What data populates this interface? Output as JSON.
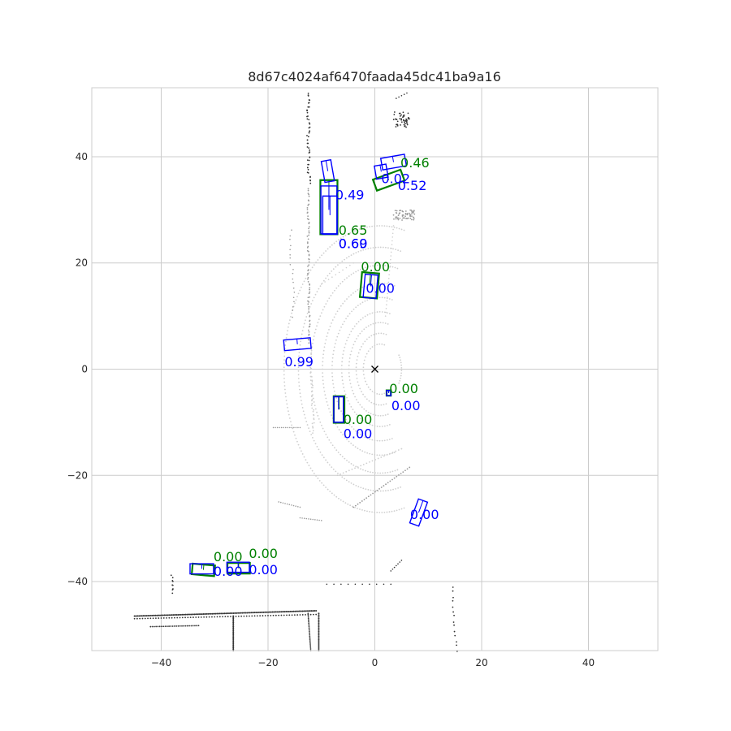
{
  "chart_data": {
    "type": "scatter",
    "title": "8d67c4024af6470faada45dc41ba9a16",
    "xlabel": "",
    "ylabel": "",
    "xlim": [
      -53,
      53
    ],
    "ylim": [
      -53,
      53
    ],
    "xticks": [
      -40,
      -20,
      0,
      20,
      40
    ],
    "yticks": [
      -40,
      -20,
      0,
      20,
      40
    ],
    "grid": true,
    "ego_marker": {
      "x": 0,
      "y": 0,
      "symbol": "x"
    },
    "colors": {
      "ground_truth": "#008000",
      "prediction": "#0000ff",
      "grid": "#cccccc",
      "near_points": "#cfcfcf",
      "far_points": "#333333"
    },
    "ground_truth_boxes": [
      {
        "cx": -8.6,
        "cy": 30.5,
        "w": 3.2,
        "h": 10.2,
        "angle": 0,
        "score": "0.65",
        "lx": -6.8,
        "ly": 25.3
      },
      {
        "cx": 2.6,
        "cy": 35.6,
        "w": 5.5,
        "h": 2.2,
        "angle": 20,
        "score": "0.46",
        "lx": 4.8,
        "ly": 38.0
      },
      {
        "cx": -1.0,
        "cy": 15.8,
        "w": 3.2,
        "h": 4.7,
        "angle": -5,
        "score": "0.00",
        "lx": -2.6,
        "ly": 18.4
      },
      {
        "cx": 2.6,
        "cy": -4.5,
        "w": 0.8,
        "h": 1.0,
        "angle": 0,
        "score": "0.00",
        "lx": 2.7,
        "ly": -4.5
      },
      {
        "cx": -6.7,
        "cy": -7.6,
        "w": 2.0,
        "h": 5.0,
        "angle": 0,
        "score": "0.00",
        "lx": -5.9,
        "ly": -10.3
      },
      {
        "cx": -32.1,
        "cy": -37.8,
        "w": 4.2,
        "h": 2.0,
        "angle": -5,
        "score": "0.00",
        "lx": -30.2,
        "ly": -36.2
      },
      {
        "cx": -25.5,
        "cy": -37.5,
        "w": 4.2,
        "h": 2.0,
        "angle": 0,
        "score": "0.00",
        "lx": -23.6,
        "ly": -35.6
      }
    ],
    "prediction_boxes": [
      {
        "cx": -8.8,
        "cy": 37.3,
        "w": 1.8,
        "h": 4.0,
        "angle": 10,
        "score": "0.49",
        "lx": -7.4,
        "ly": 32.0
      },
      {
        "cx": -8.4,
        "cy": 29.0,
        "w": 2.7,
        "h": 7.2,
        "angle": 0,
        "score": "0.60",
        "lx": -6.8,
        "ly": 22.8
      },
      {
        "cx": -8.6,
        "cy": 30.0,
        "w": 3.0,
        "h": 9.0,
        "angle": 0,
        "score": "0.69",
        "lx": -6.8,
        "ly": 22.8
      },
      {
        "cx": 3.5,
        "cy": 39.0,
        "w": 4.5,
        "h": 2.2,
        "angle": 10,
        "score": "0.02",
        "lx": 1.2,
        "ly": 35.0
      },
      {
        "cx": 1.2,
        "cy": 37.2,
        "w": 2.2,
        "h": 2.5,
        "angle": 10,
        "score": "0.52",
        "lx": 4.3,
        "ly": 33.7
      },
      {
        "cx": -14.5,
        "cy": 4.7,
        "w": 5.0,
        "h": 2.0,
        "angle": 5,
        "score": "0.99",
        "lx": -16.9,
        "ly": 0.5
      },
      {
        "cx": -0.8,
        "cy": 15.6,
        "w": 2.4,
        "h": 4.4,
        "angle": -5,
        "score": "0.00",
        "lx": -1.7,
        "ly": 14.4
      },
      {
        "cx": 2.6,
        "cy": -4.5,
        "w": 0.8,
        "h": 1.0,
        "angle": 0,
        "score": "0.00",
        "lx": 3.1,
        "ly": -7.7
      },
      {
        "cx": -6.8,
        "cy": -7.6,
        "w": 1.8,
        "h": 4.8,
        "angle": 0,
        "score": "0.00",
        "lx": -5.9,
        "ly": -13.0
      },
      {
        "cx": 8.2,
        "cy": -27.0,
        "w": 1.8,
        "h": 4.8,
        "angle": -20,
        "score": "0.00",
        "lx": 6.6,
        "ly": -28.2
      },
      {
        "cx": -32.4,
        "cy": -37.6,
        "w": 4.4,
        "h": 1.9,
        "angle": 0,
        "score": "0.00",
        "lx": -30.2,
        "ly": -38.9
      },
      {
        "cx": -25.6,
        "cy": -37.3,
        "w": 4.2,
        "h": 1.9,
        "angle": 0,
        "score": "0.00",
        "lx": -23.6,
        "ly": -38.6
      }
    ]
  }
}
